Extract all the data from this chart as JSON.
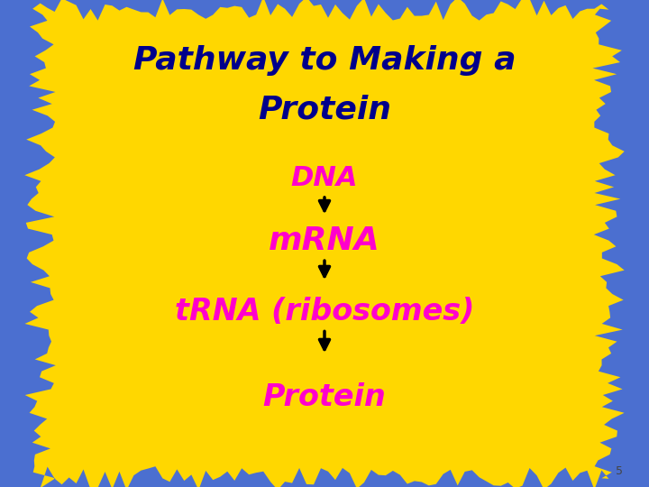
{
  "background_outer": "#4B6FD0",
  "background_inner": "#FFD700",
  "title_line1": "Pathway to Making a",
  "title_line2": "Protein",
  "title_color": "#00008B",
  "title_fontsize": 26,
  "steps": [
    "DNA",
    "mRNA",
    "tRNA (ribosomes)",
    "Protein"
  ],
  "step_color": "#FF00CC",
  "step_fontsizes": [
    22,
    26,
    24,
    24
  ],
  "arrow_color": "#000000",
  "slide_number": "5",
  "slide_number_color": "#444444",
  "slide_number_fontsize": 9
}
